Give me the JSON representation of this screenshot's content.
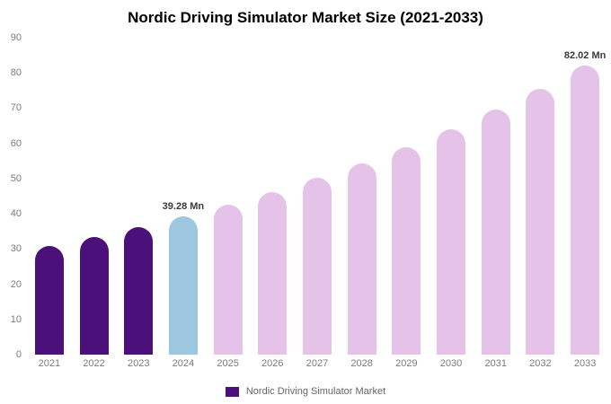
{
  "chart_data": {
    "type": "bar",
    "title": "Nordic Driving Simulator Market Size (2021-2033)",
    "xlabel": "",
    "ylabel": "",
    "ylim": [
      0,
      90
    ],
    "yticks": [
      0,
      10,
      20,
      30,
      40,
      50,
      60,
      70,
      80,
      90
    ],
    "grid": false,
    "categories": [
      "2021",
      "2022",
      "2023",
      "2024",
      "2025",
      "2026",
      "2027",
      "2028",
      "2029",
      "2030",
      "2031",
      "2032",
      "2033"
    ],
    "values": [
      30.8,
      33.4,
      36.2,
      39.28,
      42.6,
      46.2,
      50.2,
      54.4,
      59.0,
      64.1,
      69.5,
      75.4,
      82.02
    ],
    "bar_colors": [
      "#4B1079",
      "#4B1079",
      "#4B1079",
      "#9DC6E1",
      "#E5C3E8",
      "#E5C3E8",
      "#E5C3E8",
      "#E5C3E8",
      "#E5C3E8",
      "#E5C3E8",
      "#E5C3E8",
      "#E5C3E8",
      "#E5C3E8"
    ],
    "annotations": [
      {
        "category": "2024",
        "text": "39.28 Mn"
      },
      {
        "category": "2033",
        "text": "82.02 Mn"
      }
    ],
    "colors": {
      "historical": "#4B1079",
      "base_year": "#9DC6E1",
      "forecast": "#E5C3E8"
    },
    "legend": {
      "label": "Nordic Driving Simulator Market",
      "color": "#4B1079",
      "position": "bottom"
    }
  }
}
